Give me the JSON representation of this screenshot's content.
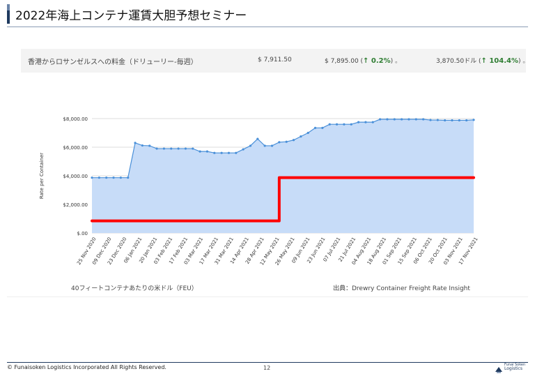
{
  "header": {
    "title": "2022年海上コンテナ運賃大胆予想セミナー"
  },
  "summary": {
    "route_label": "香港からロサンゼルスへの料金（ドリューリー-毎週）",
    "price_1": "$ 7,911.50",
    "price_2": "$ 7,895.00",
    "change_2": "↑ 0.2%",
    "price_3": "3,870.50ドル",
    "change_3": "↑ 104.4%",
    "suffix": "。"
  },
  "chart_data": {
    "type": "area",
    "ylabel": "Rate per Container",
    "ylim": [
      0,
      8000
    ],
    "y_ticks": [
      0,
      2000,
      4000,
      6000,
      8000
    ],
    "y_tick_labels": [
      "$.00",
      "$2,000.00",
      "$4,000.00",
      "$6,000.00",
      "$8,000.00"
    ],
    "x_tick_labels": [
      "25 Nov 2020",
      "09 Dec 2020",
      "23 Dec 2020",
      "06 Jan 2021",
      "20 Jan 2021",
      "03 Feb 2021",
      "17 Feb 2021",
      "03 Mar 2021",
      "17 Mar 2021",
      "31 Mar 2021",
      "14 Apr 2021",
      "28 Apr 2021",
      "12 May 2021",
      "26 May 2021",
      "09 Jun 2021",
      "23 Jun 2021",
      "07 Jul 2021",
      "21 Jul 2021",
      "04 Aug 2021",
      "18 Aug 2021",
      "01 Sep 2021",
      "15 Sep 2021",
      "06 Oct 2021",
      "20 Oct 2021",
      "03 Nov 2021",
      "17 Nov 2021"
    ],
    "series": [
      {
        "color": "#4a90d9",
        "fill": "#c7dcf8",
        "values": [
          3870,
          3870,
          3870,
          3870,
          3870,
          3870,
          6300,
          6120,
          6100,
          5900,
          5900,
          5900,
          5900,
          5900,
          5900,
          5700,
          5700,
          5600,
          5600,
          5600,
          5600,
          5850,
          6100,
          6580,
          6100,
          6100,
          6350,
          6380,
          6500,
          6750,
          7000,
          7350,
          7350,
          7600,
          7600,
          7600,
          7600,
          7750,
          7750,
          7750,
          7950,
          7950,
          7950,
          7950,
          7950,
          7950,
          7950,
          7900,
          7900,
          7880,
          7880,
          7880,
          7880,
          7911.5
        ]
      }
    ],
    "overlay_step": {
      "color": "#ff0000",
      "x_index": [
        0,
        26,
        26,
        53
      ],
      "values": [
        850,
        850,
        3870,
        3870
      ]
    },
    "grid": true
  },
  "footnote": "40フィートコンテナあたりの米ドル（FEU）",
  "source": "出典：Drewry Container Freight Rate Insight",
  "footer": {
    "copyright": "© Funaisoken Logistics Incorporated All Rights Reserved.",
    "page": "12",
    "logo_line1": "Funai Soken",
    "logo_line2": "Logistics"
  }
}
